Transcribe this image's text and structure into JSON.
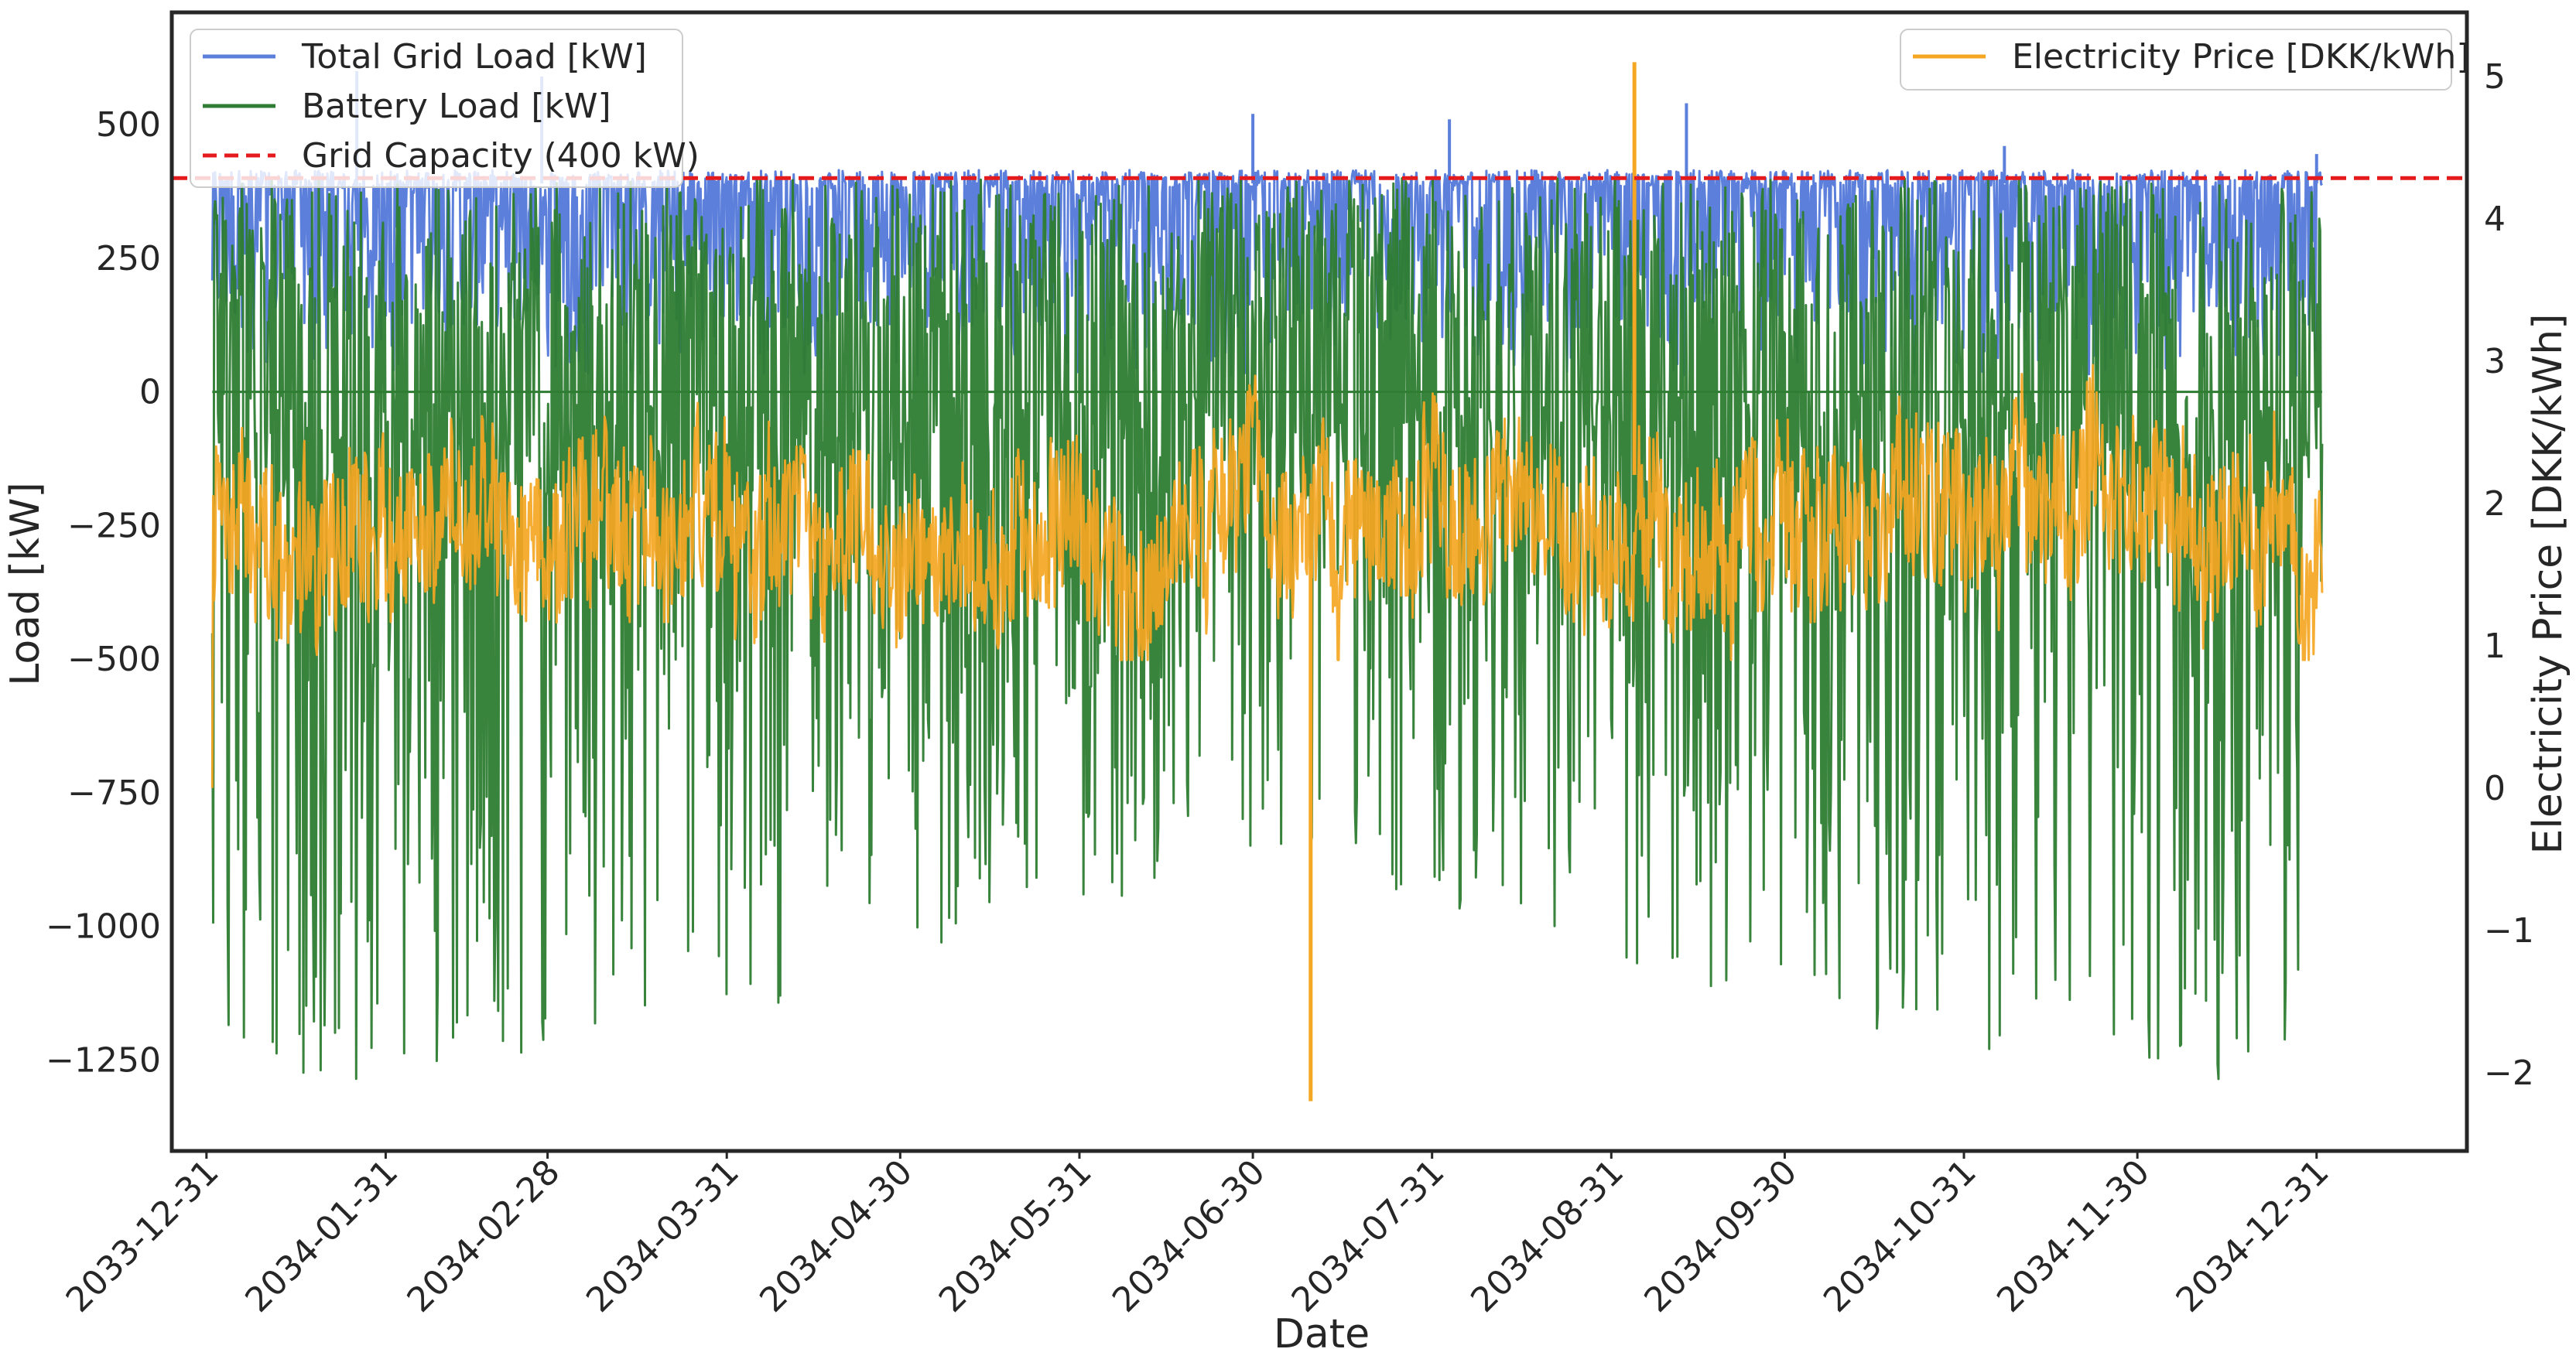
{
  "chart_data": {
    "type": "line",
    "title": "",
    "xlabel": "Date",
    "ylabel": "Load [kW]",
    "y2label": "Electricity Price [DKK/kWh]",
    "x_ticks": [
      "2033-12-31",
      "2034-01-31",
      "2034-02-28",
      "2034-03-31",
      "2034-04-30",
      "2034-05-31",
      "2034-06-30",
      "2034-07-31",
      "2034-08-31",
      "2034-09-30",
      "2034-10-31",
      "2034-11-30",
      "2034-12-31"
    ],
    "xlim": [
      "2033-12-25",
      "2035-01-26"
    ],
    "ylim": [
      -1420,
      710
    ],
    "y_ticks": [
      500,
      250,
      0,
      -250,
      -500,
      -750,
      -1000,
      -1250
    ],
    "y_tick_labels": [
      "500",
      "250",
      "0",
      "−250",
      "−500",
      "−750",
      "−1000",
      "−1250"
    ],
    "y2lim": [
      -2.55,
      5.45
    ],
    "y2_ticks": [
      5,
      4,
      3,
      2,
      1,
      0,
      -1,
      -2
    ],
    "y2_tick_labels": [
      "5",
      "4",
      "3",
      "2",
      "1",
      "0",
      "−1",
      "−2"
    ],
    "grid": false,
    "data_range": [
      "2034-01-01",
      "2034-12-31"
    ],
    "series": [
      {
        "name": "Total Grid Load [kW]",
        "axis": "left",
        "color": "#5b7fdb",
        "typical_low": 30,
        "typical_high": 410,
        "peaks": [
          600,
          590,
          520,
          510,
          540,
          460,
          445
        ]
      },
      {
        "name": "Battery Load [kW]",
        "axis": "left",
        "color": "#2e7d32",
        "typical_low": -1300,
        "typical_high": 400,
        "min": -1320
      },
      {
        "name": "Electricity Price [DKK/kWh]",
        "axis": "right",
        "color": "#f5a623",
        "typical_low": 0.9,
        "typical_high": 3.0,
        "max": 5.1,
        "min": -2.2
      }
    ],
    "reference_lines": [
      {
        "name": "Grid Capacity (400 kW)",
        "axis": "left",
        "y": 400,
        "color": "#e41a1c",
        "style": "dashed"
      }
    ],
    "legends": [
      {
        "placement": "top-left",
        "entries": [
          "Total Grid Load [kW]",
          "Battery Load [kW]",
          "Grid Capacity (400 kW)"
        ]
      },
      {
        "placement": "top-right",
        "entries": [
          "Electricity Price [DKK/kWh]"
        ]
      }
    ]
  }
}
